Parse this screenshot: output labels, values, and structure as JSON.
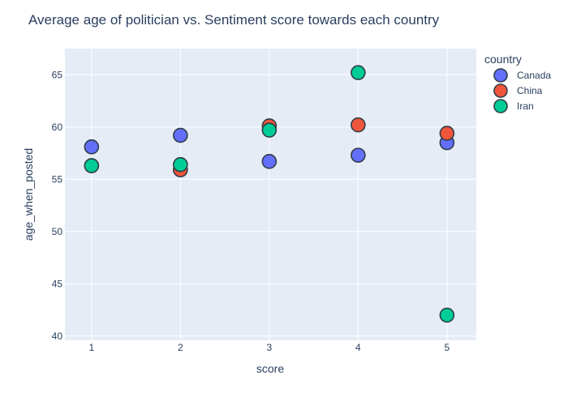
{
  "chart_data": {
    "type": "scatter",
    "title": "Average age of politician vs. Sentiment score towards each country",
    "xlabel": "score",
    "ylabel": "age_when_posted",
    "x_ticks": [
      1,
      2,
      3,
      4,
      5
    ],
    "y_ticks": [
      40,
      45,
      50,
      55,
      60,
      65
    ],
    "xlim": [
      0.7,
      5.33
    ],
    "ylim": [
      39.6,
      67.5
    ],
    "grid": true,
    "legend_title": "country",
    "legend_position": "top-right",
    "series": [
      {
        "name": "Canada",
        "color": "#636efa",
        "points": [
          [
            1,
            58.1
          ],
          [
            2,
            59.2
          ],
          [
            3,
            56.7
          ],
          [
            4,
            57.3
          ],
          [
            5,
            58.5
          ]
        ]
      },
      {
        "name": "China",
        "color": "#ef553b",
        "points": [
          [
            1,
            56.3
          ],
          [
            2,
            55.9
          ],
          [
            3,
            60.1
          ],
          [
            4,
            60.2
          ],
          [
            5,
            59.4
          ]
        ]
      },
      {
        "name": "Iran",
        "color": "#00cc96",
        "points": [
          [
            1,
            56.3
          ],
          [
            2,
            56.4
          ],
          [
            3,
            59.7
          ],
          [
            4,
            65.2
          ],
          [
            5,
            42.0
          ]
        ]
      }
    ]
  }
}
